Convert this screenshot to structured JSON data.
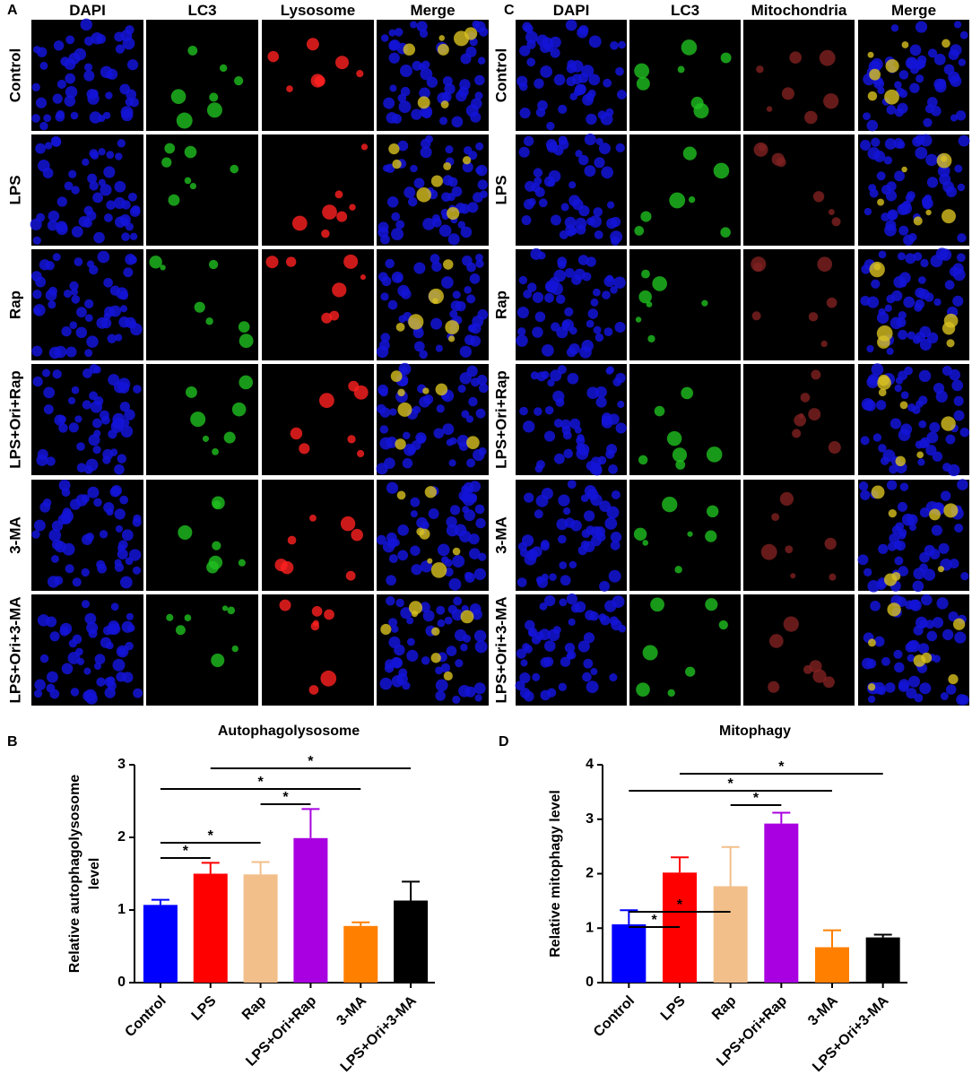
{
  "panel_a": {
    "label": "A",
    "columns": [
      "DAPI",
      "LC3",
      "Lysosome",
      "Merge"
    ],
    "rows": [
      "Control",
      "LPS",
      "Rap",
      "LPS+Ori+Rap",
      "3-MA",
      "LPS+Ori+3-MA"
    ]
  },
  "panel_c": {
    "label": "C",
    "columns": [
      "DAPI",
      "LC3",
      "Mitochondria",
      "Merge"
    ],
    "rows": [
      "Control",
      "LPS",
      "Rap",
      "LPS+Ori+Rap",
      "3-MA",
      "LPS+Ori+3-MA"
    ]
  },
  "chart_data": [
    {
      "type": "bar",
      "panel_label": "B",
      "title": "Autophagolysosome",
      "y_label": [
        "Relative autophagolysosome",
        "level"
      ],
      "categories": [
        "Control",
        "LPS",
        "Rap",
        "LPS+Ori+Rap",
        "3-MA",
        "LPS+Ori+3-MA"
      ],
      "values": [
        1.07,
        1.5,
        1.49,
        1.99,
        0.78,
        1.13
      ],
      "errors": [
        0.07,
        0.15,
        0.17,
        0.4,
        0.05,
        0.26
      ],
      "colors": [
        "#0000ff",
        "#ff0000",
        "#f2bf8a",
        "#a800e0",
        "#ff8000",
        "#000000"
      ],
      "ylim": [
        0,
        3
      ],
      "yticks": [
        0,
        1,
        2,
        3
      ],
      "significance": [
        {
          "pair": [
            0,
            1
          ],
          "label": "*"
        },
        {
          "pair": [
            0,
            2
          ],
          "label": "*"
        },
        {
          "pair": [
            2,
            3
          ],
          "label": "*"
        },
        {
          "pair": [
            0,
            4
          ],
          "label": "*"
        },
        {
          "pair": [
            1,
            5
          ],
          "label": "*"
        }
      ]
    },
    {
      "type": "bar",
      "panel_label": "D",
      "title": "Mitophagy",
      "y_label": [
        "Relative mitophagy level"
      ],
      "categories": [
        "Control",
        "LPS",
        "Rap",
        "LPS+Ori+Rap",
        "3-MA",
        "LPS+Ori+3-MA"
      ],
      "values": [
        1.07,
        2.02,
        1.77,
        2.92,
        0.65,
        0.83
      ],
      "errors": [
        0.26,
        0.28,
        0.72,
        0.2,
        0.31,
        0.05
      ],
      "colors": [
        "#0000ff",
        "#ff0000",
        "#f2bf8a",
        "#a800e0",
        "#ff8000",
        "#000000"
      ],
      "ylim": [
        0,
        4
      ],
      "yticks": [
        0,
        1,
        2,
        3,
        4
      ],
      "significance": [
        {
          "pair": [
            0,
            1
          ],
          "label": "*"
        },
        {
          "pair": [
            0,
            2
          ],
          "label": "*"
        },
        {
          "pair": [
            2,
            3
          ],
          "label": "*"
        },
        {
          "pair": [
            0,
            4
          ],
          "label": "*"
        },
        {
          "pair": [
            1,
            5
          ],
          "label": "*"
        }
      ]
    }
  ]
}
